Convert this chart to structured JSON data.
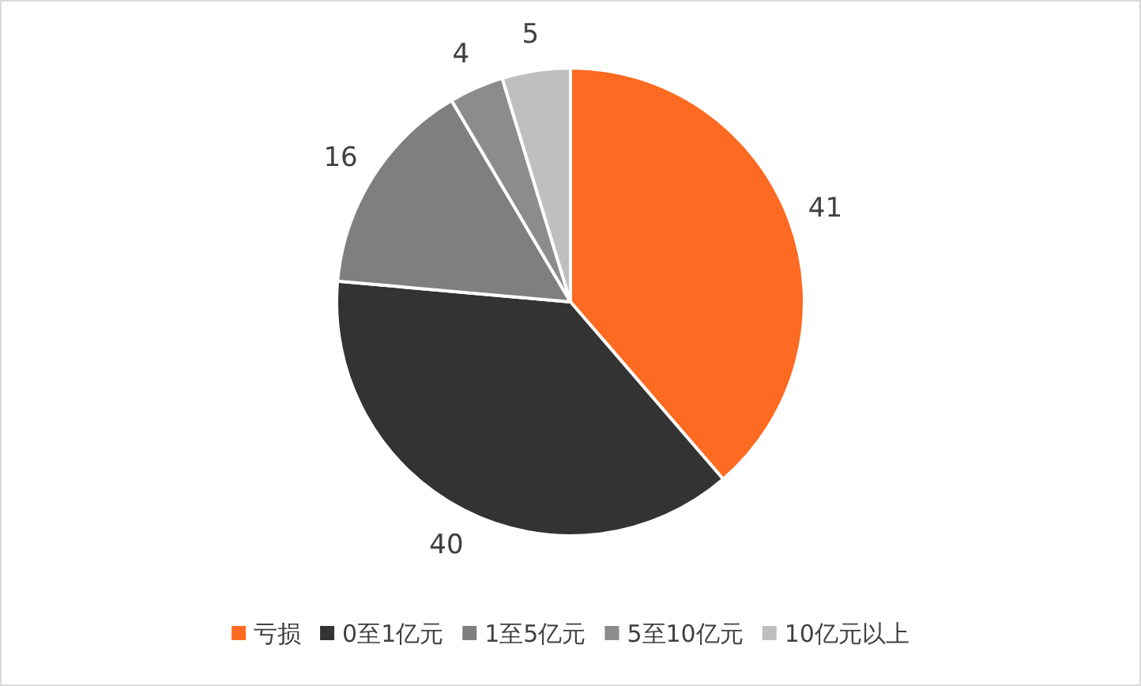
{
  "chart_data": {
    "type": "pie",
    "categories": [
      "亏损",
      "0至1亿元",
      "1至5亿元",
      "5至10亿元",
      "10亿元以上"
    ],
    "values": [
      41,
      40,
      16,
      4,
      5
    ],
    "colors": [
      "#fd6a21",
      "#333333",
      "#7f7f7f",
      "#8c8c8c",
      "#bfbfbf"
    ],
    "data_labels": true,
    "legend": "bottom"
  }
}
